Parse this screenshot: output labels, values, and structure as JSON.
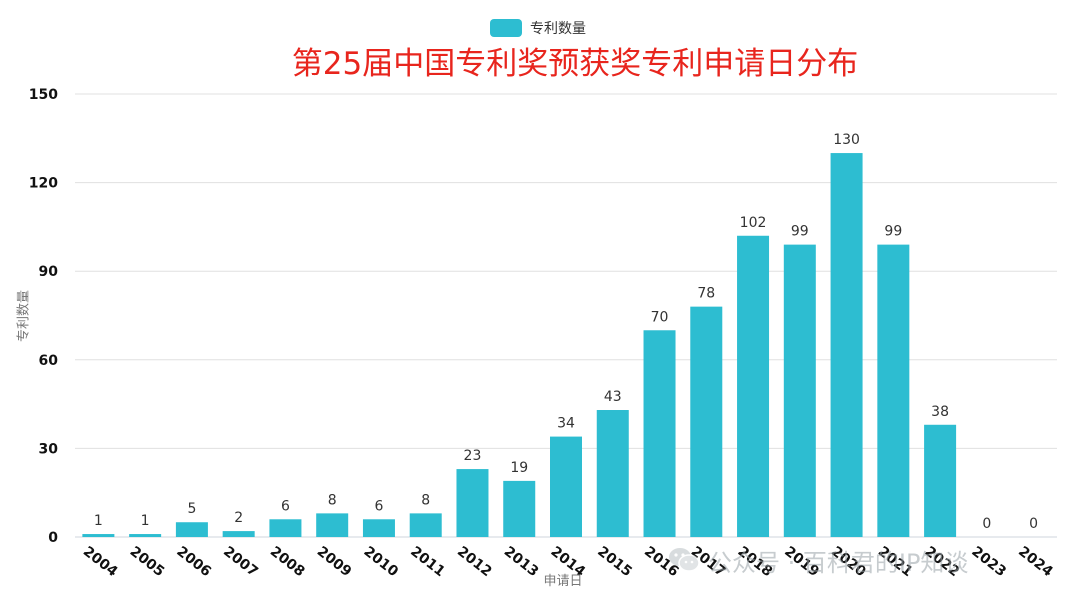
{
  "chart_data": {
    "type": "bar",
    "title": "第25届中国专利奖预获奖专利申请日分布",
    "xlabel": "申请日",
    "ylabel": "专利数量",
    "categories": [
      "2004",
      "2005",
      "2006",
      "2007",
      "2008",
      "2009",
      "2010",
      "2011",
      "2012",
      "2013",
      "2014",
      "2015",
      "2016",
      "2017",
      "2018",
      "2019",
      "2020",
      "2021",
      "2022",
      "2023",
      "2024"
    ],
    "series": [
      {
        "name": "专利数量",
        "values": [
          1,
          1,
          5,
          2,
          6,
          8,
          6,
          8,
          23,
          19,
          34,
          43,
          70,
          78,
          102,
          99,
          130,
          99,
          38,
          0,
          0
        ]
      }
    ],
    "ylim": [
      0,
      150
    ],
    "yticks": [
      0,
      30,
      60,
      90,
      120,
      150
    ],
    "grid": true,
    "legend_position": "top-center",
    "data_labels": true,
    "colors": {
      "bar": "#2dbdd1",
      "title": "#e8251d",
      "grid": "#e0e0e0",
      "axis_label": "#777777",
      "tick": "#111111",
      "data_label": "#333333"
    }
  },
  "watermark": {
    "text": "公众号 · 百科君的IP知谈",
    "icon": "wechat-icon"
  }
}
